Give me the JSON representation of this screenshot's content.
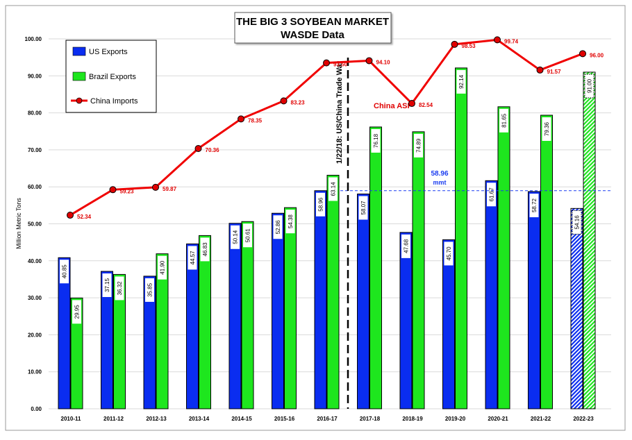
{
  "chart_data": {
    "type": "bar",
    "title": [
      "THE BIG 3 SOYBEAN MARKET",
      "WASDE Data"
    ],
    "ylabel": "Million Metric Tons",
    "ylim": [
      0,
      100
    ],
    "yticks": [
      "0.00",
      "10.00",
      "20.00",
      "30.00",
      "40.00",
      "50.00",
      "60.00",
      "70.00",
      "80.00",
      "90.00",
      "100.00"
    ],
    "categories": [
      "2010-11",
      "2011-12",
      "2012-13",
      "2013-14",
      "2014-15",
      "2015-16",
      "2016-17",
      "2017-18",
      "2018-19",
      "2019-20",
      "2020-21",
      "2021-22",
      "2022-23"
    ],
    "series": [
      {
        "name": "US Exports",
        "type": "bar",
        "color": "#0a2df0",
        "values": [
          40.85,
          37.15,
          35.85,
          44.57,
          50.14,
          52.86,
          58.96,
          58.07,
          47.68,
          45.7,
          61.67,
          58.72,
          54.16
        ],
        "labels": [
          "40.85",
          "37.15",
          "35.85",
          "44.57",
          "50.14",
          "52.86",
          "58.96",
          "58.07",
          "47.68",
          "45.70",
          "61.67",
          "58.72",
          "54.16"
        ]
      },
      {
        "name": "Brazil Exports",
        "type": "bar",
        "color": "#1ee61e",
        "values": [
          29.95,
          36.32,
          41.9,
          46.83,
          50.61,
          54.38,
          63.14,
          76.18,
          74.89,
          92.14,
          81.65,
          79.36,
          91.0
        ],
        "labels": [
          "29.95",
          "36.32",
          "41.90",
          "46.83",
          "50.61",
          "54.38",
          "63.14",
          "76.18",
          "74.89",
          "92.14",
          "81.65",
          "79.36",
          "91.00"
        ]
      },
      {
        "name": "China Imports",
        "type": "line",
        "color": "#f00000",
        "values": [
          52.34,
          59.23,
          59.87,
          70.36,
          78.35,
          83.23,
          93.5,
          94.1,
          82.54,
          98.53,
          99.74,
          91.57,
          96.0
        ],
        "labels": [
          "52.34",
          "59.23",
          "59.87",
          "70.36",
          "78.35",
          "83.23",
          "93.50",
          "94.10",
          "82.54",
          "98.53",
          "99.74",
          "91.57",
          "96.00"
        ]
      }
    ],
    "projected_category": "2022-23",
    "annotations": {
      "trade_war": "1/22/18: US/China Trade War",
      "asf": "China ASF",
      "reference_value": 58.96,
      "reference_label": "58.96",
      "reference_unit": "mmt"
    },
    "legend": "top-left",
    "grid": true
  }
}
